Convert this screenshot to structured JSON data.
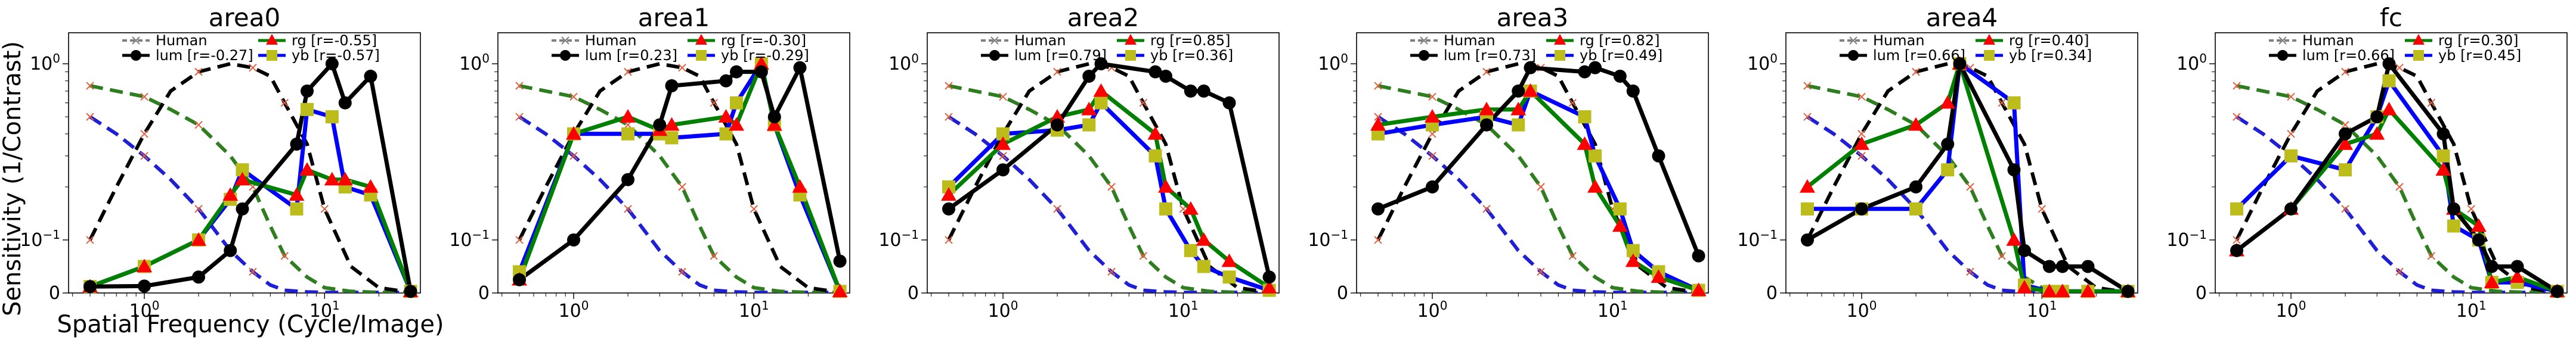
{
  "figure": {
    "ylabel": "Sensitivity (1/Contrast)",
    "xlabel": "Spatial Frequency (Cycle/Image)"
  },
  "colors": {
    "human": "#808080",
    "lum": "#000000",
    "rg": "#008000",
    "yb": "#0000ff",
    "rg_marker": "#ff0000",
    "yb_marker": "#bcbc1a",
    "dash_lum": "#000000",
    "dash_rg": "#2e7d1f",
    "dash_yb": "#1f1fd6",
    "dash_x_marker": "#e06040"
  },
  "legend": {
    "human_label": "Human",
    "lum_prefix": "lum",
    "rg_prefix": "rg",
    "yb_prefix": "yb"
  },
  "chart_data": [
    {
      "type": "line",
      "title": "area0",
      "xscale": "log",
      "yscale": "symlog",
      "ylim": [
        0,
        1.5
      ],
      "yticks": [
        "0",
        "10^-1",
        "10^0"
      ],
      "r": {
        "lum": "[r=-0.27]",
        "rg": "[r=-0.55]",
        "yb": "[r=-0.57]"
      },
      "series": [
        {
          "name": "lum",
          "x": [
            0.5,
            1,
            2,
            3,
            3.5,
            7,
            8,
            11,
            13,
            18,
            30
          ],
          "y": [
            0.012,
            0.013,
            0.03,
            0.08,
            0.15,
            0.35,
            0.7,
            1.0,
            0.6,
            0.85,
            0.003
          ]
        },
        {
          "name": "rg",
          "x": [
            0.5,
            1,
            2,
            3,
            3.5,
            7,
            8,
            11,
            13,
            18,
            30
          ],
          "y": [
            0.012,
            0.05,
            0.1,
            0.18,
            0.22,
            0.18,
            0.25,
            0.22,
            0.22,
            0.2,
            0.003
          ]
        },
        {
          "name": "yb",
          "x": [
            0.5,
            1,
            2,
            3,
            3.5,
            7,
            8,
            11,
            13,
            18,
            30
          ],
          "y": [
            0.012,
            0.05,
            0.1,
            0.17,
            0.25,
            0.15,
            0.55,
            0.5,
            0.2,
            0.18,
            0.003
          ]
        }
      ]
    },
    {
      "type": "line",
      "title": "area1",
      "xscale": "log",
      "yscale": "symlog",
      "ylim": [
        0,
        1.5
      ],
      "yticks": [
        "0",
        "10^-1",
        "10^0"
      ],
      "r": {
        "lum": "[r=0.23]",
        "rg": "[r=-0.30]",
        "yb": "[r=-0.29]"
      },
      "series": [
        {
          "name": "lum",
          "x": [
            0.5,
            1,
            2,
            3,
            3.5,
            7,
            8,
            11,
            13,
            18,
            30
          ],
          "y": [
            0.025,
            0.1,
            0.22,
            0.45,
            0.75,
            0.8,
            0.9,
            0.9,
            0.5,
            0.95,
            0.06
          ]
        },
        {
          "name": "rg",
          "x": [
            0.5,
            1,
            2,
            3,
            3.5,
            7,
            8,
            11,
            13,
            18,
            30
          ],
          "y": [
            0.025,
            0.4,
            0.5,
            0.42,
            0.45,
            0.5,
            0.45,
            1.0,
            0.45,
            0.2,
            0.003
          ]
        },
        {
          "name": "yb",
          "x": [
            0.5,
            1,
            2,
            3,
            3.5,
            7,
            8,
            11,
            13,
            18,
            30
          ],
          "y": [
            0.04,
            0.4,
            0.4,
            0.4,
            0.38,
            0.4,
            0.6,
            1.0,
            0.45,
            0.18,
            0.003
          ]
        }
      ]
    },
    {
      "type": "line",
      "title": "area2",
      "xscale": "log",
      "yscale": "symlog",
      "ylim": [
        0,
        1.5
      ],
      "yticks": [
        "0",
        "10^-1",
        "10^0"
      ],
      "r": {
        "lum": "[r=0.79]",
        "rg": "[r=0.85]",
        "yb": "[r=0.36]"
      },
      "series": [
        {
          "name": "lum",
          "x": [
            0.5,
            1,
            2,
            3,
            3.5,
            7,
            8,
            11,
            13,
            18,
            30
          ],
          "y": [
            0.15,
            0.25,
            0.45,
            0.85,
            1.0,
            0.9,
            0.85,
            0.7,
            0.7,
            0.6,
            0.03
          ]
        },
        {
          "name": "rg",
          "x": [
            0.5,
            1,
            2,
            3,
            3.5,
            7,
            8,
            11,
            13,
            18,
            30
          ],
          "y": [
            0.18,
            0.35,
            0.5,
            0.55,
            0.7,
            0.4,
            0.2,
            0.15,
            0.1,
            0.06,
            0.01
          ]
        },
        {
          "name": "yb",
          "x": [
            0.5,
            1,
            2,
            3,
            3.5,
            7,
            8,
            11,
            13,
            18,
            30
          ],
          "y": [
            0.2,
            0.4,
            0.42,
            0.45,
            0.6,
            0.3,
            0.15,
            0.08,
            0.05,
            0.03,
            0.005
          ]
        }
      ]
    },
    {
      "type": "line",
      "title": "area3",
      "xscale": "log",
      "yscale": "symlog",
      "ylim": [
        0,
        1.5
      ],
      "yticks": [
        "0",
        "10^-1",
        "10^0"
      ],
      "r": {
        "lum": "[r=0.73]",
        "rg": "[r=0.82]",
        "yb": "[r=0.49]"
      },
      "series": [
        {
          "name": "lum",
          "x": [
            0.5,
            1,
            2,
            3,
            3.5,
            7,
            8,
            11,
            13,
            18,
            30
          ],
          "y": [
            0.15,
            0.2,
            0.45,
            0.7,
            0.95,
            0.9,
            0.95,
            0.85,
            0.7,
            0.3,
            0.07
          ]
        },
        {
          "name": "rg",
          "x": [
            0.5,
            1,
            2,
            3,
            3.5,
            7,
            8,
            11,
            13,
            18,
            30
          ],
          "y": [
            0.45,
            0.5,
            0.55,
            0.55,
            0.7,
            0.35,
            0.2,
            0.12,
            0.06,
            0.03,
            0.005
          ]
        },
        {
          "name": "yb",
          "x": [
            0.5,
            1,
            2,
            3,
            3.5,
            7,
            8,
            11,
            13,
            18,
            30
          ],
          "y": [
            0.4,
            0.45,
            0.5,
            0.45,
            0.7,
            0.5,
            0.3,
            0.15,
            0.08,
            0.04,
            0.005
          ]
        }
      ]
    },
    {
      "type": "line",
      "title": "area4",
      "xscale": "log",
      "yscale": "symlog",
      "ylim": [
        0,
        1.5
      ],
      "yticks": [
        "0",
        "10^-1",
        "10^0"
      ],
      "r": {
        "lum": "[r=0.66]",
        "rg": "[r=0.40]",
        "yb": "[r=0.34]"
      },
      "series": [
        {
          "name": "lum",
          "x": [
            0.5,
            1,
            2,
            3,
            3.5,
            7,
            8,
            11,
            13,
            18,
            30
          ],
          "y": [
            0.1,
            0.15,
            0.2,
            0.35,
            1.0,
            0.25,
            0.08,
            0.05,
            0.05,
            0.05,
            0.003
          ]
        },
        {
          "name": "rg",
          "x": [
            0.5,
            1,
            2,
            3,
            3.5,
            7,
            8,
            11,
            13,
            18,
            30
          ],
          "y": [
            0.2,
            0.35,
            0.45,
            0.6,
            1.0,
            0.1,
            0.01,
            0.003,
            0.003,
            0.003,
            0.003
          ]
        },
        {
          "name": "yb",
          "x": [
            0.5,
            1,
            2,
            3,
            3.5,
            7,
            8,
            11,
            13,
            18,
            30
          ],
          "y": [
            0.15,
            0.15,
            0.15,
            0.25,
            1.0,
            0.6,
            0.015,
            0.003,
            0.003,
            0.003,
            0.003
          ]
        }
      ]
    },
    {
      "type": "line",
      "title": "fc",
      "xscale": "log",
      "yscale": "symlog",
      "ylim": [
        0,
        1.5
      ],
      "yticks": [
        "0",
        "10^-1",
        "10^0"
      ],
      "r": {
        "lum": "[r=0.66]",
        "rg": "[r=0.30]",
        "yb": "[r=0.45]"
      },
      "series": [
        {
          "name": "lum",
          "x": [
            0.5,
            1,
            2,
            3,
            3.5,
            7,
            8,
            11,
            13,
            18,
            30
          ],
          "y": [
            0.08,
            0.15,
            0.4,
            0.5,
            1.0,
            0.4,
            0.15,
            0.1,
            0.05,
            0.05,
            0.003
          ]
        },
        {
          "name": "rg",
          "x": [
            0.5,
            1,
            2,
            3,
            3.5,
            7,
            8,
            11,
            13,
            18,
            30
          ],
          "y": [
            0.08,
            0.15,
            0.35,
            0.4,
            0.55,
            0.25,
            0.15,
            0.12,
            0.02,
            0.03,
            0.003
          ]
        },
        {
          "name": "yb",
          "x": [
            0.5,
            1,
            2,
            3,
            3.5,
            7,
            8,
            11,
            13,
            18,
            30
          ],
          "y": [
            0.15,
            0.3,
            0.25,
            0.5,
            0.8,
            0.3,
            0.12,
            0.1,
            0.02,
            0.02,
            0.003
          ]
        }
      ]
    }
  ],
  "human_reference": {
    "lum_x": [
      0.5,
      0.7,
      1,
      1.4,
      2,
      3,
      4,
      5,
      6,
      8,
      10,
      14,
      20,
      30
    ],
    "lum_y": [
      0.1,
      0.2,
      0.4,
      0.7,
      0.9,
      1.0,
      0.95,
      0.85,
      0.6,
      0.35,
      0.15,
      0.05,
      0.01,
      0.001
    ],
    "rg_x": [
      0.5,
      0.7,
      1,
      1.4,
      2,
      3,
      4,
      5,
      6,
      8,
      10,
      14,
      20,
      30
    ],
    "rg_y": [
      0.75,
      0.7,
      0.65,
      0.55,
      0.45,
      0.3,
      0.2,
      0.12,
      0.07,
      0.03,
      0.01,
      0.003,
      0.001,
      0.001
    ],
    "yb_x": [
      0.5,
      0.7,
      1,
      1.4,
      2,
      3,
      4,
      5,
      6,
      8,
      10,
      14,
      20,
      30
    ],
    "yb_y": [
      0.5,
      0.4,
      0.3,
      0.22,
      0.15,
      0.08,
      0.04,
      0.015,
      0.005,
      0.002,
      0.001,
      0.001,
      0.001,
      0.001
    ]
  }
}
